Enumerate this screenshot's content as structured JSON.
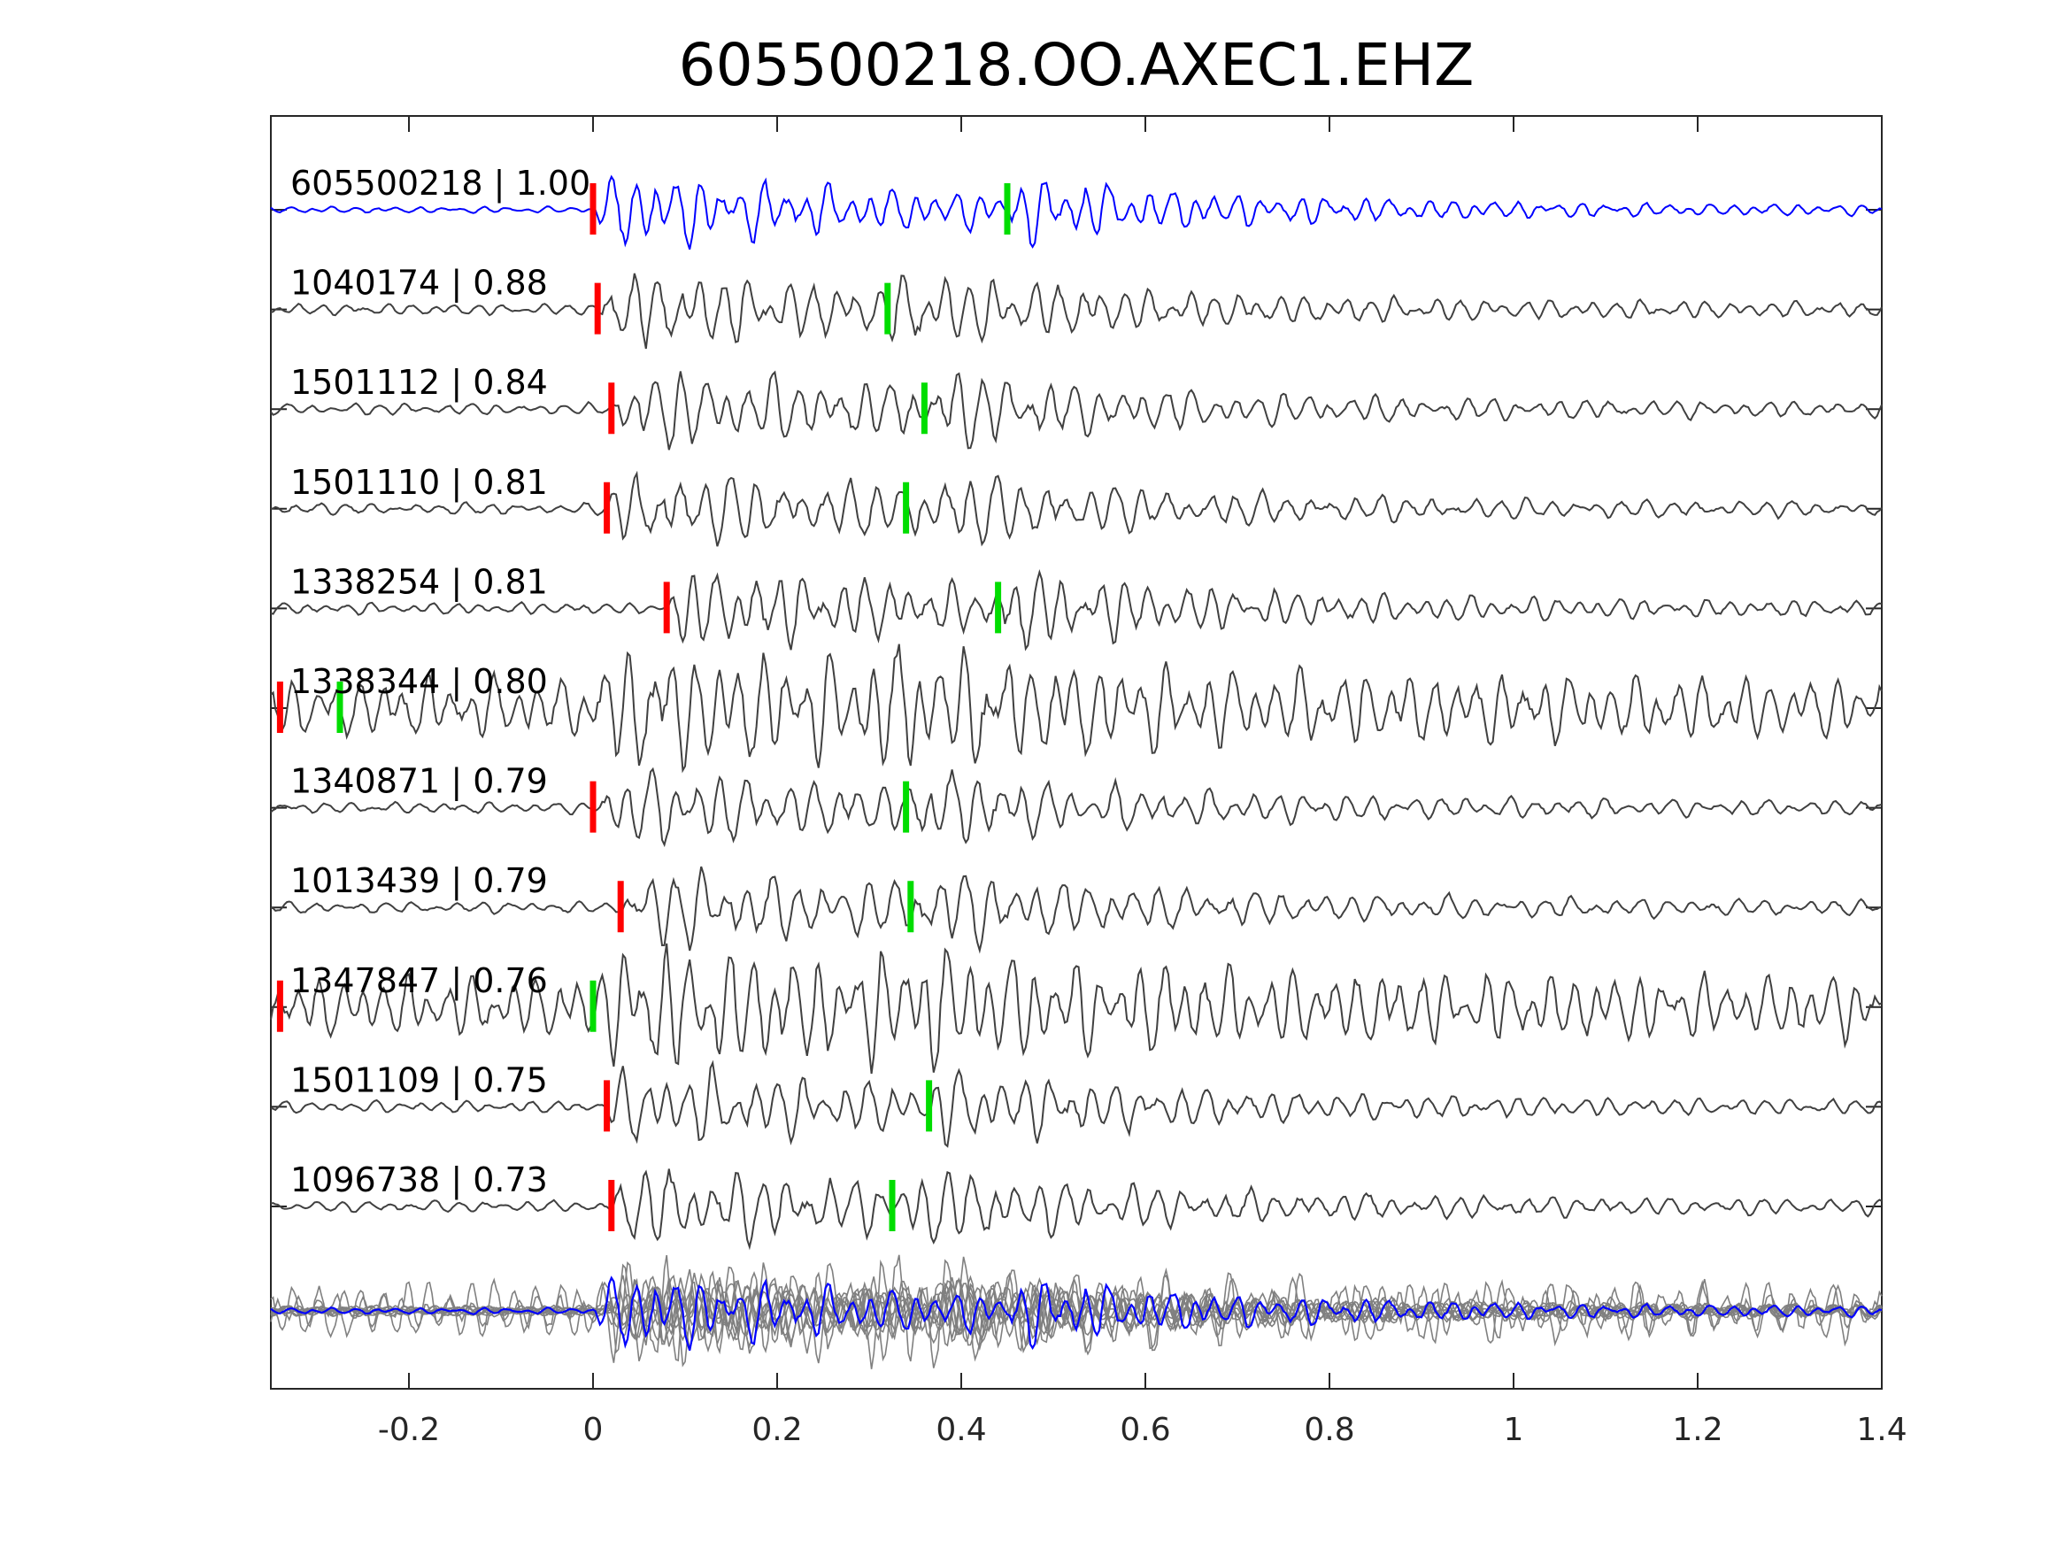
{
  "chart_data": {
    "type": "line",
    "title": "605500218.OO.AXEC1.EHZ",
    "xlim": [
      -0.35,
      1.4
    ],
    "x_ticks": [
      -0.2,
      0,
      0.2,
      0.4,
      0.6,
      0.8,
      1,
      1.2,
      1.4
    ],
    "x_tick_labels": [
      "-0.2",
      "0",
      "0.2",
      "0.4",
      "0.6",
      "0.8",
      "1",
      "1.2",
      "1.4"
    ],
    "xlabel": "",
    "ylabel": "",
    "grid": false,
    "legend": false,
    "colors": {
      "reference": "#0000ff",
      "trace": "#404040",
      "stack_trace": "#808080",
      "p_pick": "#ff0000",
      "s_pick": "#00dd00",
      "axes": "#262626"
    },
    "traces": [
      {
        "id": "605500218",
        "cc": "1.00",
        "reference": true,
        "p_pick": 0.0,
        "s_pick": 0.45
      },
      {
        "id": "1040174",
        "cc": "0.88",
        "reference": false,
        "p_pick": 0.005,
        "s_pick": 0.32
      },
      {
        "id": "1501112",
        "cc": "0.84",
        "reference": false,
        "p_pick": 0.02,
        "s_pick": 0.36
      },
      {
        "id": "1501110",
        "cc": "0.81",
        "reference": false,
        "p_pick": 0.015,
        "s_pick": 0.34
      },
      {
        "id": "1338254",
        "cc": "0.81",
        "reference": false,
        "p_pick": 0.08,
        "s_pick": 0.44
      },
      {
        "id": "1338344",
        "cc": "0.80",
        "reference": false,
        "p_pick": -0.34,
        "s_pick": -0.275
      },
      {
        "id": "1340871",
        "cc": "0.79",
        "reference": false,
        "p_pick": 0.0,
        "s_pick": 0.34
      },
      {
        "id": "1013439",
        "cc": "0.79",
        "reference": false,
        "p_pick": 0.03,
        "s_pick": 0.345
      },
      {
        "id": "1347847",
        "cc": "0.76",
        "reference": false,
        "p_pick": -0.34,
        "s_pick": 0.0
      },
      {
        "id": "1501109",
        "cc": "0.75",
        "reference": false,
        "p_pick": 0.015,
        "s_pick": 0.365
      },
      {
        "id": "1096738",
        "cc": "0.73",
        "reference": false,
        "p_pick": 0.02,
        "s_pick": 0.325
      }
    ],
    "stack": {
      "aligned_traces": 11
    }
  }
}
